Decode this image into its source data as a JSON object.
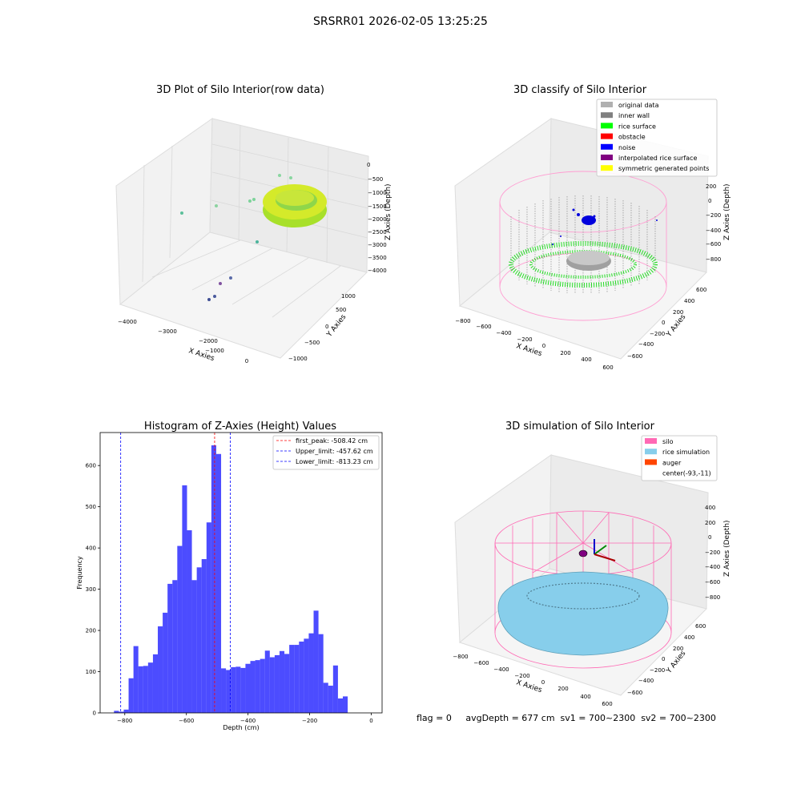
{
  "figure": {
    "suptitle": "SRSRR01 2026-02-05 13:25:25",
    "bottom_status": "flag = 0     avgDepth = 677 cm  sv1 = 700~2300  sv2 = 700~2300"
  },
  "panels": {
    "raw": {
      "title": "3D Plot of Silo Interior(row data)",
      "xlabel": "X Axies",
      "ylabel": "Y Axies",
      "zlabel": "Z Axies (Depth)",
      "xticks": [
        "−4000",
        "−3000",
        "−2000",
        "−1000",
        "0"
      ],
      "yticks": [
        "1000",
        "500",
        "0",
        "−500",
        "−1000"
      ],
      "zticks": [
        "0",
        "−500",
        "−1000",
        "−1500",
        "−2000",
        "−2500",
        "−3000",
        "−3500",
        "−4000"
      ]
    },
    "classify": {
      "title": "3D classify of Silo Interior",
      "xlabel": "X Axies",
      "ylabel": "Y Axies",
      "zlabel": "Z Axies (Depth)",
      "xticks": [
        "−800",
        "−600",
        "−400",
        "−200",
        "0",
        "200",
        "400",
        "600"
      ],
      "yticks": [
        "600",
        "400",
        "200",
        "0",
        "−200",
        "−400",
        "−600"
      ],
      "zticks": [
        "200",
        "0",
        "−200",
        "−400",
        "−600",
        "−800"
      ],
      "legend": [
        {
          "label": "original data",
          "color": "#b0b0b0"
        },
        {
          "label": "inner wall",
          "color": "#808080"
        },
        {
          "label": "rice surface",
          "color": "#00ff00"
        },
        {
          "label": "obstacle",
          "color": "#ff0000"
        },
        {
          "label": "noise",
          "color": "#0000ff"
        },
        {
          "label": "interpolated rice surface",
          "color": "#800080"
        },
        {
          "label": "symmetric generated points",
          "color": "#ffff00"
        }
      ]
    },
    "simulation": {
      "title": "3D simulation of Silo Interior",
      "xlabel": "X Axies",
      "ylabel": "Y Axies",
      "zlabel": "Z Axies (Depth)",
      "xticks": [
        "−800",
        "−600",
        "−400",
        "−200",
        "0",
        "200",
        "400",
        "600"
      ],
      "yticks": [
        "600",
        "400",
        "200",
        "0",
        "−200",
        "−400",
        "−600"
      ],
      "zticks": [
        "400",
        "200",
        "0",
        "−200",
        "−400",
        "−600",
        "−800"
      ],
      "legend": [
        {
          "label": "silo",
          "color": "#ff69b4"
        },
        {
          "label": "rice simulation",
          "color": "#87ceeb"
        },
        {
          "label": "auger",
          "color": "#ff4500"
        },
        {
          "label": "center(-93,-11)",
          "color": "none"
        }
      ]
    }
  },
  "chart_data": {
    "type": "bar",
    "title": "Histogram of Z-Axies (Height) Values",
    "xlabel": "Depth (cm)",
    "ylabel": "Frequency",
    "xlim": [
      -880,
      35
    ],
    "ylim": [
      0,
      680
    ],
    "xticks": [
      -800,
      -600,
      -400,
      -200,
      0
    ],
    "xtick_labels": [
      "−800",
      "−600",
      "−400",
      "−200",
      "0"
    ],
    "yticks": [
      0,
      100,
      200,
      300,
      400,
      500,
      600
    ],
    "bar_color": "#0000ff",
    "bin_start": -835,
    "bin_width": 15.8,
    "values": [
      5,
      3,
      8,
      84,
      162,
      113,
      114,
      122,
      142,
      210,
      243,
      313,
      322,
      405,
      552,
      443,
      322,
      353,
      373,
      462,
      649,
      628,
      108,
      104,
      111,
      112,
      109,
      119,
      126,
      128,
      131,
      151,
      135,
      140,
      150,
      143,
      165,
      165,
      173,
      180,
      193,
      248,
      191,
      73,
      66,
      115,
      35,
      40
    ],
    "vlines": [
      {
        "label": "first_peak: -508.42 cm",
        "x": -508.42,
        "color": "#ff0000"
      },
      {
        "label": "Upper_limit: -457.62 cm",
        "x": -457.62,
        "color": "#0000ff"
      },
      {
        "label": "Lower_limit: -813.23 cm",
        "x": -813.23,
        "color": "#0000ff"
      }
    ]
  }
}
